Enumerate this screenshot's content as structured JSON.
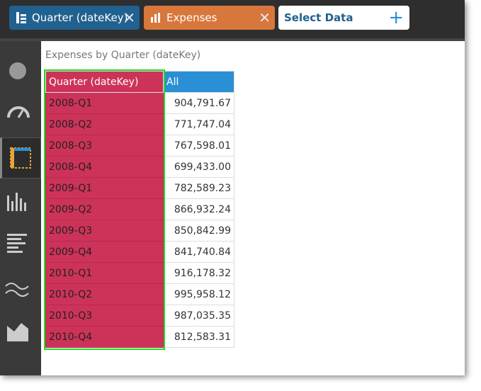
{
  "toolbar": {
    "pills": [
      {
        "label": "Quarter (dateKey)"
      },
      {
        "label": "Expenses"
      },
      {
        "label": "Select Data"
      }
    ]
  },
  "view": {
    "title": "Expenses by Quarter (dateKey)"
  },
  "table": {
    "header": [
      "Quarter (dateKey)",
      "All"
    ],
    "rows": [
      [
        "2008-Q1",
        "904,791.67"
      ],
      [
        "2008-Q2",
        "771,747.04"
      ],
      [
        "2008-Q3",
        "767,598.01"
      ],
      [
        "2008-Q4",
        "699,433.00"
      ],
      [
        "2009-Q1",
        "782,589.23"
      ],
      [
        "2009-Q2",
        "866,932.24"
      ],
      [
        "2009-Q3",
        "850,842.99"
      ],
      [
        "2009-Q4",
        "841,740.84"
      ],
      [
        "2010-Q1",
        "916,178.32"
      ],
      [
        "2010-Q2",
        "995,958.12"
      ],
      [
        "2010-Q3",
        "987,035.35"
      ],
      [
        "2010-Q4",
        "812,583.31"
      ]
    ]
  }
}
